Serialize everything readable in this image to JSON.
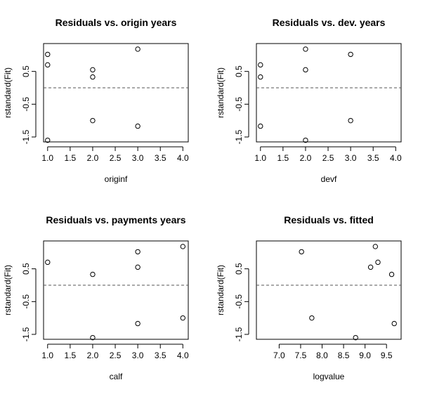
{
  "chart_data": [
    {
      "type": "scatter",
      "title": "Residuals vs. origin years",
      "xlabel": "originf",
      "ylabel": "rstandard(Fit)",
      "xlim": [
        0.91,
        4.12
      ],
      "ylim": [
        -1.65,
        1.35
      ],
      "xticks": [
        1.0,
        1.5,
        2.0,
        2.5,
        3.0,
        3.5,
        4.0
      ],
      "xtick_labels": [
        "1.0",
        "1.5",
        "2.0",
        "2.5",
        "3.0",
        "3.5",
        "4.0"
      ],
      "yticks": [
        -1.5,
        -0.5,
        0.5
      ],
      "ytick_labels": [
        "-1.5",
        "-0.5",
        "0.5"
      ],
      "hline": 0,
      "hline_style": "dashed",
      "points": [
        {
          "x": 1,
          "y": 1.02
        },
        {
          "x": 1,
          "y": 0.7
        },
        {
          "x": 1,
          "y": -1.6
        },
        {
          "x": 2,
          "y": 0.55
        },
        {
          "x": 2,
          "y": 0.33
        },
        {
          "x": 2,
          "y": -1.0
        },
        {
          "x": 3,
          "y": 1.18
        },
        {
          "x": 3,
          "y": -1.17
        }
      ]
    },
    {
      "type": "scatter",
      "title": "Residuals vs. dev. years",
      "xlabel": "devf",
      "ylabel": "rstandard(Fit)",
      "xlim": [
        0.91,
        4.12
      ],
      "ylim": [
        -1.65,
        1.35
      ],
      "xticks": [
        1.0,
        1.5,
        2.0,
        2.5,
        3.0,
        3.5,
        4.0
      ],
      "xtick_labels": [
        "1.0",
        "1.5",
        "2.0",
        "2.5",
        "3.0",
        "3.5",
        "4.0"
      ],
      "yticks": [
        -1.5,
        -0.5,
        0.5
      ],
      "ytick_labels": [
        "-1.5",
        "-0.5",
        "0.5"
      ],
      "hline": 0,
      "hline_style": "dashed",
      "points": [
        {
          "x": 1,
          "y": 0.7
        },
        {
          "x": 1,
          "y": 0.33
        },
        {
          "x": 1,
          "y": -1.17
        },
        {
          "x": 2,
          "y": 1.18
        },
        {
          "x": 2,
          "y": 0.55
        },
        {
          "x": 2,
          "y": -1.6
        },
        {
          "x": 3,
          "y": 1.02
        },
        {
          "x": 3,
          "y": -1.0
        }
      ]
    },
    {
      "type": "scatter",
      "title": "Residuals vs. payments years",
      "xlabel": "calf",
      "ylabel": "rstandard(Fit)",
      "xlim": [
        0.91,
        4.12
      ],
      "ylim": [
        -1.65,
        1.35
      ],
      "xticks": [
        1.0,
        1.5,
        2.0,
        2.5,
        3.0,
        3.5,
        4.0
      ],
      "xtick_labels": [
        "1.0",
        "1.5",
        "2.0",
        "2.5",
        "3.0",
        "3.5",
        "4.0"
      ],
      "yticks": [
        -1.5,
        -0.5,
        0.5
      ],
      "ytick_labels": [
        "-1.5",
        "-0.5",
        "0.5"
      ],
      "hline": 0,
      "hline_style": "dashed",
      "points": [
        {
          "x": 1,
          "y": 0.7
        },
        {
          "x": 2,
          "y": 0.33
        },
        {
          "x": 2,
          "y": -1.6
        },
        {
          "x": 3,
          "y": 1.02
        },
        {
          "x": 3,
          "y": 0.55
        },
        {
          "x": 3,
          "y": -1.17
        },
        {
          "x": 4,
          "y": 1.18
        },
        {
          "x": 4,
          "y": -1.0
        }
      ]
    },
    {
      "type": "scatter",
      "title": "Residuals vs. fitted",
      "xlabel": "logvalue",
      "ylabel": "rstandard(Fit)",
      "xlim": [
        6.47,
        9.84
      ],
      "ylim": [
        -1.65,
        1.35
      ],
      "xticks": [
        7.0,
        7.5,
        8.0,
        8.5,
        9.0,
        9.5
      ],
      "xtick_labels": [
        "7.0",
        "7.5",
        "8.0",
        "8.5",
        "9.0",
        "9.5"
      ],
      "yticks": [
        -1.5,
        -0.5,
        0.5
      ],
      "ytick_labels": [
        "-1.5",
        "-0.5",
        "0.5"
      ],
      "hline": 0,
      "hline_style": "dashed",
      "points": [
        {
          "x": 7.52,
          "y": 1.02
        },
        {
          "x": 7.76,
          "y": -1.0
        },
        {
          "x": 8.78,
          "y": -1.6
        },
        {
          "x": 9.13,
          "y": 0.55
        },
        {
          "x": 9.24,
          "y": 1.18
        },
        {
          "x": 9.3,
          "y": 0.7
        },
        {
          "x": 9.62,
          "y": 0.33
        },
        {
          "x": 9.68,
          "y": -1.17
        }
      ]
    }
  ]
}
